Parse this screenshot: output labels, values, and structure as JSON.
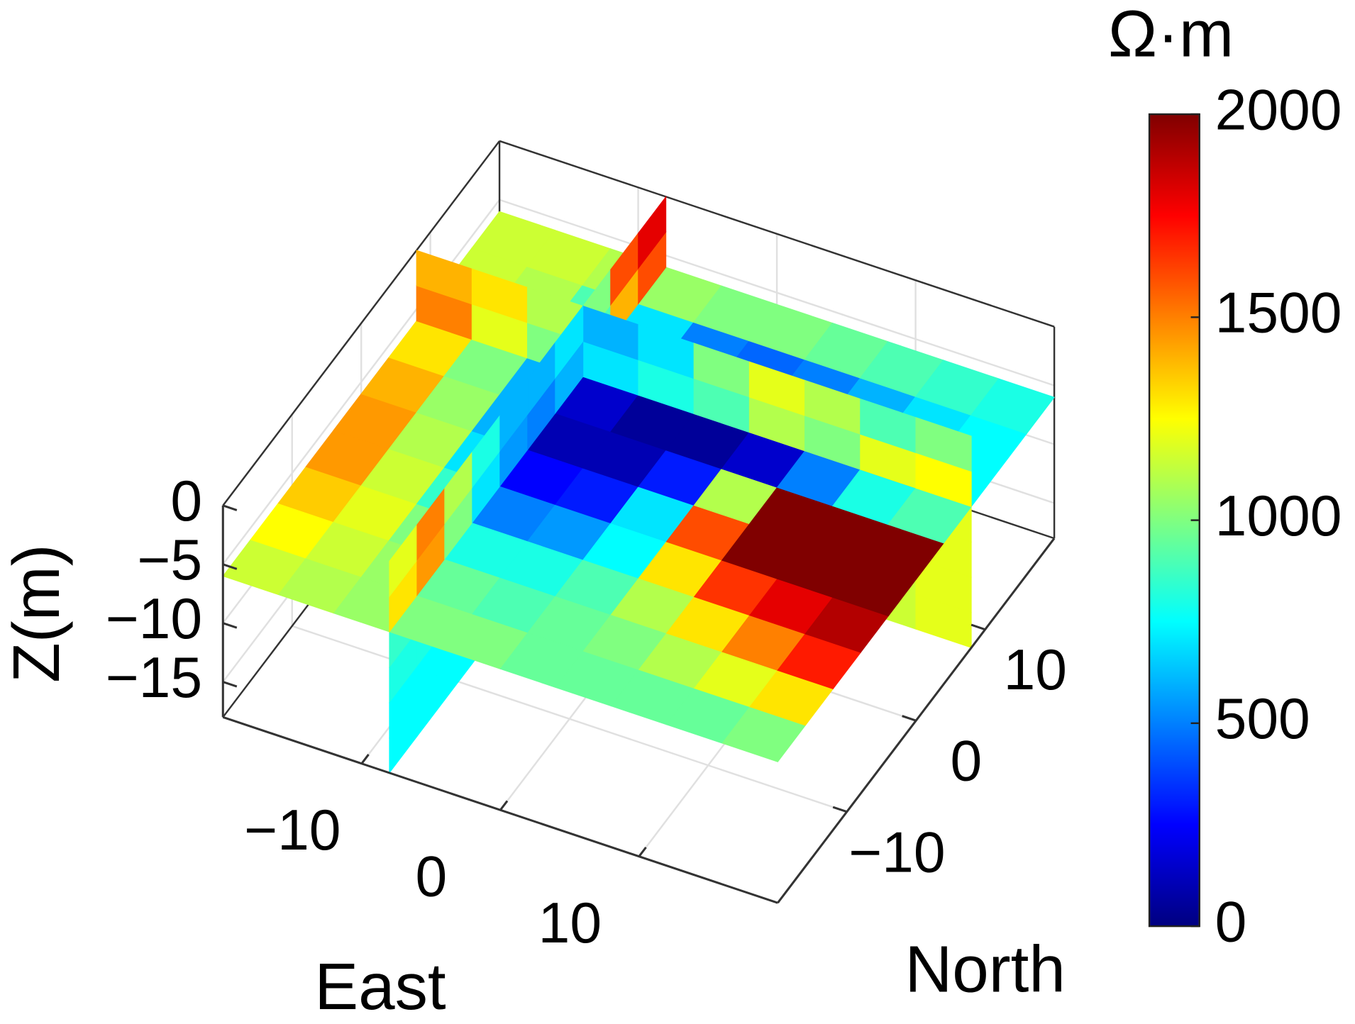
{
  "chart_data": {
    "type": "slice3d",
    "xlabel": "East",
    "ylabel": "North",
    "zlabel": "Z(m)",
    "colorbar_label": "Ω·m",
    "xlim": [
      -20,
      20
    ],
    "ylim": [
      -20,
      20
    ],
    "zlim": [
      -18,
      0
    ],
    "xticks": [
      {
        "value": -10,
        "label": "−10"
      },
      0,
      10
    ],
    "yticks": [
      {
        "value": -10,
        "label": "−10"
      },
      0,
      10
    ],
    "zticks": [
      0,
      {
        "value": -5,
        "label": "−5"
      },
      {
        "value": -10,
        "label": "−10"
      },
      {
        "value": -15,
        "label": "−15"
      }
    ],
    "clim": [
      0,
      2000
    ],
    "cticks": [
      0,
      500,
      1000,
      1500,
      2000
    ],
    "colormap": "jet",
    "grid": true,
    "slices": [
      {
        "normal": "z",
        "position": -6,
        "values": [
          [
            1150,
            1100,
            1050,
            1000,
            1000,
            950,
            950,
            950,
            950,
            1000
          ],
          [
            1250,
            1150,
            1050,
            950,
            900,
            950,
            1000,
            1100,
            1200,
            1300
          ],
          [
            1350,
            1200,
            1000,
            800,
            800,
            900,
            1100,
            1300,
            1500,
            1700
          ],
          [
            1450,
            1150,
            850,
            500,
            550,
            750,
            1300,
            1650,
            1800,
            1900
          ],
          [
            1450,
            1100,
            700,
            250,
            300,
            700,
            1600,
            2000,
            2000,
            2000
          ],
          [
            1400,
            1050,
            600,
            100,
            100,
            300,
            1100,
            2000,
            2000,
            2000
          ],
          [
            1300,
            1000,
            600,
            150,
            50,
            50,
            150,
            500,
            800,
            900
          ],
          [
            1200,
            1000,
            700,
            300,
            150,
            100,
            150,
            300,
            600,
            750
          ],
          [
            1150,
            1100,
            900,
            700,
            500,
            450,
            500,
            600,
            700,
            750
          ],
          [
            1150,
            1150,
            1100,
            1050,
            1000,
            1000,
            950,
            900,
            850,
            800
          ]
        ]
      },
      {
        "normal": "x",
        "position": -8,
        "values": [
          [
            750,
            750,
            750,
            750,
            750,
            750,
            700,
            700,
            700,
            700
          ],
          [
            750,
            750,
            750,
            750,
            700,
            700,
            700,
            700,
            700,
            700
          ],
          [
            800,
            800,
            750,
            700,
            650,
            650,
            700,
            700,
            700,
            750
          ],
          [
            850,
            850,
            800,
            700,
            600,
            600,
            650,
            750,
            800,
            900
          ],
          [
            1300,
            1450,
            1000,
            700,
            550,
            500,
            600,
            900,
            1400,
            1600
          ],
          [
            1200,
            1500,
            1100,
            800,
            600,
            600,
            700,
            1000,
            1600,
            1800
          ]
        ]
      },
      {
        "normal": "y",
        "position": 8,
        "values": [
          [
            1100,
            1050,
            1000,
            950,
            950,
            950,
            1000,
            1050,
            1150,
            1200
          ],
          [
            1100,
            1050,
            1000,
            950,
            900,
            900,
            1000,
            1050,
            1150,
            1200
          ],
          [
            1100,
            1050,
            950,
            900,
            850,
            850,
            950,
            1050,
            1150,
            1200
          ],
          [
            1100,
            1000,
            900,
            800,
            700,
            750,
            900,
            1000,
            1150,
            1200
          ],
          [
            1500,
            1200,
            1000,
            700,
            800,
            900,
            1100,
            1000,
            1200,
            1250
          ],
          [
            1400,
            1300,
            1100,
            600,
            700,
            1000,
            1200,
            1100,
            900,
            1000
          ]
        ]
      }
    ]
  }
}
